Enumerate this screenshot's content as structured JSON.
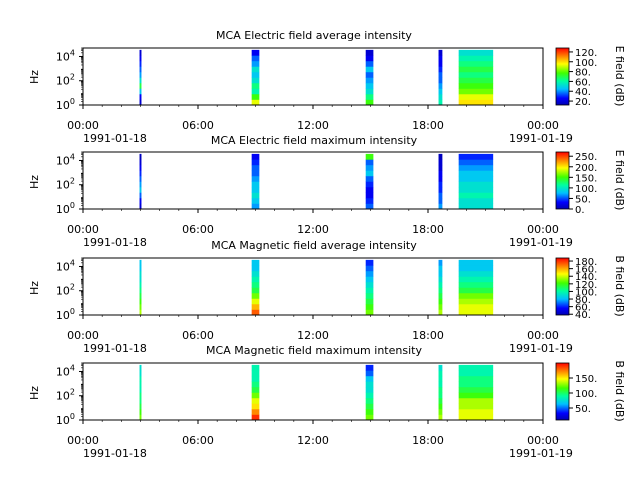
{
  "figure": {
    "x_ticks": [
      "00:00",
      "06:00",
      "12:00",
      "18:00",
      "00:00"
    ],
    "x_hours": [
      0,
      6,
      12,
      18,
      24
    ],
    "date_start": "1991-01-18",
    "date_end": "1991-01-19"
  },
  "panels": [
    {
      "title": "MCA  Electric field average intensity",
      "ylabel": "Hz",
      "y_ticks": [
        {
          "base": "10",
          "exp": "0"
        },
        {
          "base": "10",
          "exp": "2"
        },
        {
          "base": "10",
          "exp": "4"
        }
      ],
      "colorbar_label": "E field (dB)",
      "colorbar_ticks": [
        "20.",
        "40.",
        "60.",
        "80.",
        "100.",
        "120."
      ],
      "colorbar_values": [
        20,
        40,
        60,
        80,
        100,
        120
      ]
    },
    {
      "title": "MCA  Electric field maximum intensity",
      "ylabel": "Hz",
      "y_ticks": [
        {
          "base": "10",
          "exp": "0"
        },
        {
          "base": "10",
          "exp": "2"
        },
        {
          "base": "10",
          "exp": "4"
        }
      ],
      "colorbar_label": "E field (dB)",
      "colorbar_ticks": [
        "0.",
        "50.",
        "100.",
        "150.",
        "200.",
        "250."
      ],
      "colorbar_values": [
        0,
        50,
        100,
        150,
        200,
        250
      ]
    },
    {
      "title": "MCA  Magnetic field average intensity",
      "ylabel": "Hz",
      "y_ticks": [
        {
          "base": "10",
          "exp": "0"
        },
        {
          "base": "10",
          "exp": "2"
        },
        {
          "base": "10",
          "exp": "4"
        }
      ],
      "colorbar_label": "B field (dB)",
      "colorbar_ticks": [
        "40.",
        "60.",
        "80.",
        "100.",
        "120.",
        "140.",
        "160.",
        "180."
      ],
      "colorbar_values": [
        40,
        60,
        80,
        100,
        120,
        140,
        160,
        180
      ]
    },
    {
      "title": "MCA  Magnetic field maximum intensity",
      "ylabel": "Hz",
      "y_ticks": [
        {
          "base": "10",
          "exp": "0"
        },
        {
          "base": "10",
          "exp": "2"
        },
        {
          "base": "10",
          "exp": "4"
        }
      ],
      "colorbar_label": "B field (dB)",
      "colorbar_ticks": [
        "50.",
        "100.",
        "150."
      ],
      "colorbar_values": [
        50,
        100,
        150
      ]
    }
  ],
  "chart_data": [
    {
      "type": "heatmap",
      "title": "MCA  Electric field average intensity",
      "xlabel": "",
      "ylabel": "Hz",
      "x_range_hours": [
        0,
        24
      ],
      "y_scale": "log",
      "ylim": [
        1,
        50000
      ],
      "colorbar_range": [
        12,
        128
      ],
      "segments": [
        {
          "start_h": 2.95,
          "end_h": 3.05,
          "profile": [
            0.05,
            0.1,
            0.3,
            0.5,
            0.35,
            0.25,
            0.2,
            0.15,
            0.1,
            0.05
          ]
        },
        {
          "start_h": 8.8,
          "end_h": 9.2,
          "profile": [
            0.7,
            0.55,
            0.4,
            0.45,
            0.35,
            0.3,
            0.35,
            0.25,
            0.2,
            0.1
          ]
        },
        {
          "start_h": 14.75,
          "end_h": 15.15,
          "profile": [
            0.55,
            0.45,
            0.35,
            0.3,
            0.25,
            0.2,
            0.3,
            0.2,
            0.1,
            0.05
          ]
        },
        {
          "start_h": 18.55,
          "end_h": 18.75,
          "profile": [
            0.4,
            0.35,
            0.3,
            0.25,
            0.2,
            0.2,
            0.15,
            0.1,
            0.1,
            0.05
          ]
        },
        {
          "start_h": 19.6,
          "end_h": 21.4,
          "profile": [
            0.75,
            0.7,
            0.6,
            0.55,
            0.5,
            0.45,
            0.5,
            0.45,
            0.4,
            0.35
          ]
        }
      ]
    },
    {
      "type": "heatmap",
      "title": "MCA  Electric field maximum intensity",
      "xlabel": "",
      "ylabel": "Hz",
      "x_range_hours": [
        0,
        24
      ],
      "y_scale": "log",
      "ylim": [
        1,
        50000
      ],
      "colorbar_range": [
        0,
        270
      ],
      "segments": [
        {
          "start_h": 2.95,
          "end_h": 3.05,
          "profile": [
            0.05,
            0.1,
            0.2,
            0.3,
            0.25,
            0.2,
            0.15,
            0.1,
            0.05,
            0.02
          ]
        },
        {
          "start_h": 8.8,
          "end_h": 9.2,
          "profile": [
            0.25,
            0.3,
            0.35,
            0.3,
            0.3,
            0.25,
            0.2,
            0.2,
            0.15,
            0.1
          ]
        },
        {
          "start_h": 14.75,
          "end_h": 15.15,
          "profile": [
            0.2,
            0.15,
            0.1,
            0.1,
            0.15,
            0.2,
            0.3,
            0.25,
            0.2,
            0.55
          ]
        },
        {
          "start_h": 18.55,
          "end_h": 18.75,
          "profile": [
            0.25,
            0.2,
            0.2,
            0.15,
            0.15,
            0.1,
            0.1,
            0.05,
            0.05,
            0.02
          ]
        },
        {
          "start_h": 19.6,
          "end_h": 21.4,
          "profile": [
            0.35,
            0.35,
            0.4,
            0.35,
            0.35,
            0.3,
            0.3,
            0.25,
            0.2,
            0.15
          ]
        }
      ]
    },
    {
      "type": "heatmap",
      "title": "MCA  Magnetic field average intensity",
      "xlabel": "",
      "ylabel": "Hz",
      "x_range_hours": [
        0,
        24
      ],
      "y_scale": "log",
      "ylim": [
        1,
        50000
      ],
      "colorbar_range": [
        38,
        188
      ],
      "segments": [
        {
          "start_h": 2.95,
          "end_h": 3.05,
          "profile": [
            0.65,
            0.6,
            0.55,
            0.5,
            0.45,
            0.4,
            0.35,
            0.35,
            0.3,
            0.3
          ]
        },
        {
          "start_h": 8.8,
          "end_h": 9.2,
          "profile": [
            0.9,
            0.8,
            0.7,
            0.6,
            0.5,
            0.45,
            0.4,
            0.35,
            0.3,
            0.3
          ]
        },
        {
          "start_h": 14.75,
          "end_h": 15.15,
          "profile": [
            0.6,
            0.55,
            0.5,
            0.45,
            0.4,
            0.35,
            0.3,
            0.25,
            0.2,
            0.15
          ]
        },
        {
          "start_h": 18.55,
          "end_h": 18.75,
          "profile": [
            0.65,
            0.6,
            0.55,
            0.5,
            0.45,
            0.4,
            0.35,
            0.3,
            0.3,
            0.25
          ]
        },
        {
          "start_h": 19.6,
          "end_h": 21.4,
          "profile": [
            0.7,
            0.7,
            0.65,
            0.6,
            0.5,
            0.45,
            0.4,
            0.35,
            0.3,
            0.3
          ]
        }
      ]
    },
    {
      "type": "heatmap",
      "title": "MCA  Magnetic field maximum intensity",
      "xlabel": "",
      "ylabel": "Hz",
      "x_range_hours": [
        0,
        24
      ],
      "y_scale": "log",
      "ylim": [
        1,
        50000
      ],
      "colorbar_range": [
        10,
        200
      ],
      "segments": [
        {
          "start_h": 2.95,
          "end_h": 3.05,
          "profile": [
            0.6,
            0.55,
            0.5,
            0.45,
            0.45,
            0.4,
            0.4,
            0.4,
            0.35,
            0.35
          ]
        },
        {
          "start_h": 8.8,
          "end_h": 9.2,
          "profile": [
            0.95,
            0.85,
            0.75,
            0.7,
            0.6,
            0.5,
            0.45,
            0.4,
            0.4,
            0.4
          ]
        },
        {
          "start_h": 14.75,
          "end_h": 15.15,
          "profile": [
            0.6,
            0.55,
            0.5,
            0.45,
            0.4,
            0.35,
            0.35,
            0.3,
            0.2,
            0.15
          ]
        },
        {
          "start_h": 18.55,
          "end_h": 18.75,
          "profile": [
            0.65,
            0.6,
            0.55,
            0.5,
            0.45,
            0.45,
            0.4,
            0.4,
            0.4,
            0.35
          ]
        },
        {
          "start_h": 19.6,
          "end_h": 21.4,
          "profile": [
            0.7,
            0.7,
            0.65,
            0.65,
            0.55,
            0.5,
            0.45,
            0.45,
            0.4,
            0.4
          ]
        }
      ]
    }
  ]
}
